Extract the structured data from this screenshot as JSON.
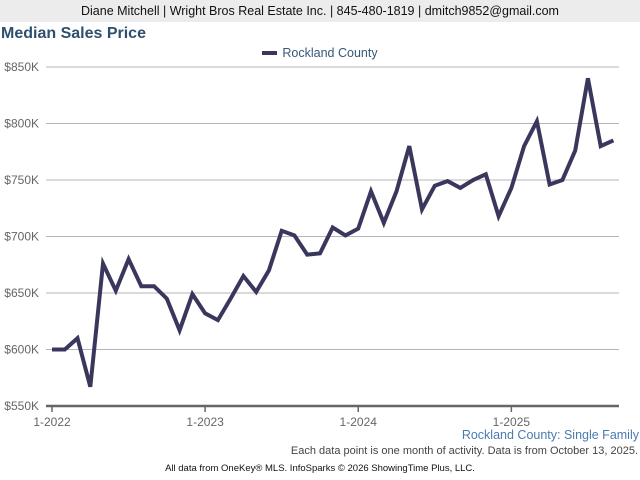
{
  "header": {
    "agent_info": "Diane Mitchell | Wright Bros Real Estate Inc. | 845-480-1819 | dmitch9852@gmail.com"
  },
  "chart_data": {
    "type": "line",
    "title": "Median Sales Price",
    "xlabel": "",
    "ylabel": "",
    "legend": {
      "position": "top-center",
      "entries": [
        "Rockland County"
      ]
    },
    "grid": true,
    "ylim": [
      550000,
      850000
    ],
    "yticks": [
      550000,
      600000,
      650000,
      700000,
      750000,
      800000,
      850000
    ],
    "ytick_labels": [
      "$550K",
      "$600K",
      "$650K",
      "$700K",
      "$750K",
      "$800K",
      "$850K"
    ],
    "xtick_labels": [
      "1-2022",
      "1-2023",
      "1-2024",
      "1-2025"
    ],
    "xtick_indices": [
      0,
      12,
      24,
      36
    ],
    "x": [
      "1-2022",
      "2-2022",
      "3-2022",
      "4-2022",
      "5-2022",
      "6-2022",
      "7-2022",
      "8-2022",
      "9-2022",
      "10-2022",
      "11-2022",
      "12-2022",
      "1-2023",
      "2-2023",
      "3-2023",
      "4-2023",
      "5-2023",
      "6-2023",
      "7-2023",
      "8-2023",
      "9-2023",
      "10-2023",
      "11-2023",
      "12-2023",
      "1-2024",
      "2-2024",
      "3-2024",
      "4-2024",
      "5-2024",
      "6-2024",
      "7-2024",
      "8-2024",
      "9-2024",
      "10-2024",
      "11-2024",
      "12-2024",
      "1-2025",
      "2-2025",
      "3-2025",
      "4-2025",
      "5-2025",
      "6-2025",
      "7-2025",
      "8-2025",
      "9-2025"
    ],
    "series": [
      {
        "name": "Rockland County",
        "color": "#3a375d",
        "values": [
          600000,
          600000,
          610000,
          567000,
          676000,
          652000,
          680000,
          656000,
          656000,
          645000,
          617000,
          649000,
          632000,
          626000,
          645000,
          665000,
          651000,
          670000,
          705000,
          701000,
          684000,
          685000,
          708000,
          701000,
          707000,
          740000,
          712000,
          740000,
          780000,
          724000,
          745000,
          749000,
          743000,
          750000,
          755000,
          718000,
          743000,
          780000,
          802000,
          746000,
          750000,
          776000,
          840000,
          780000,
          785000
        ]
      }
    ],
    "series_caption": "Rockland County: Single Family",
    "note": "Each data point is one month of activity. Data is from October 13, 2025."
  },
  "footer": {
    "source": "All data from OneKey® MLS. InfoSparks © 2026 ShowingTime Plus, LLC."
  },
  "colors": {
    "line": "#3a375d",
    "title": "#2f4f6f",
    "legend_text": "#36587a",
    "caption": "#4a7bb0",
    "grid": "#b5b5b5",
    "axis": "#666666"
  }
}
